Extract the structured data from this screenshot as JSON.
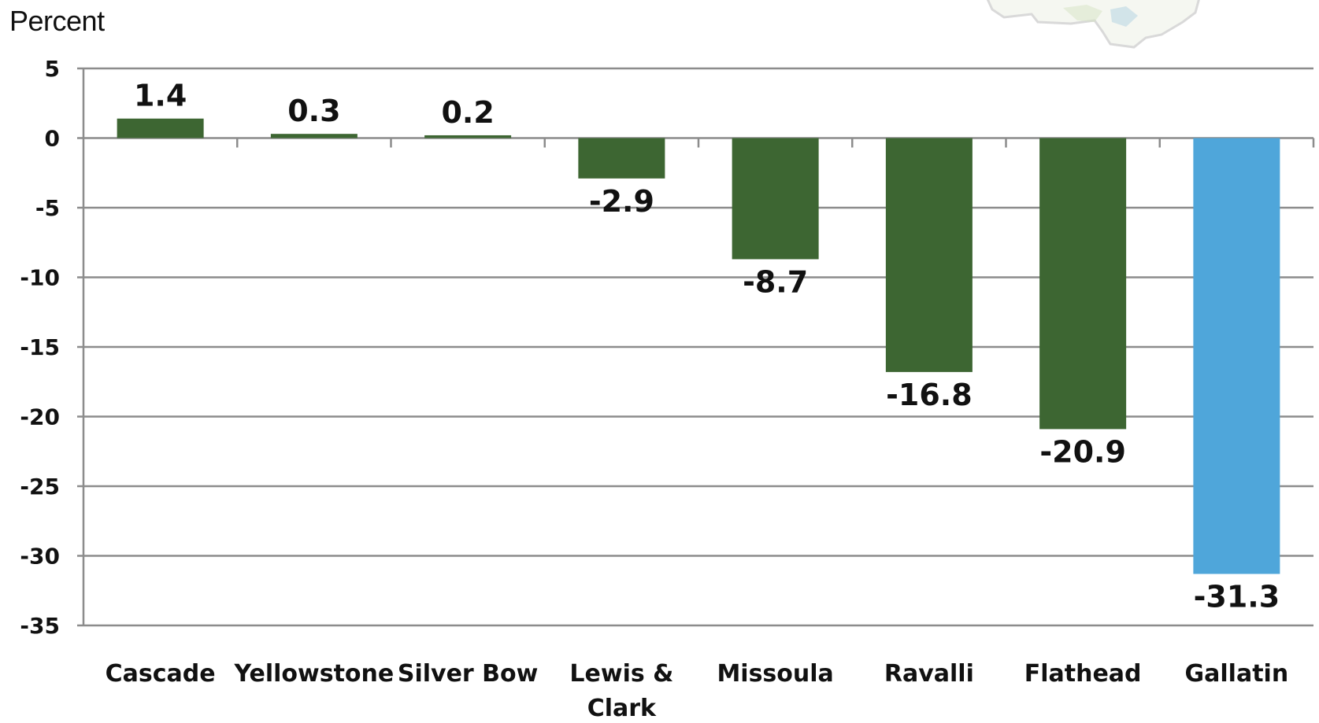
{
  "chart_data": {
    "type": "bar",
    "ylabel": "Percent",
    "categories": [
      "Cascade",
      "Yellowstone",
      "Silver Bow",
      "Lewis & Clark",
      "Missoula",
      "Ravalli",
      "Flathead",
      "Gallatin"
    ],
    "category_lines": [
      [
        "Cascade"
      ],
      [
        "Yellowstone"
      ],
      [
        "Silver Bow"
      ],
      [
        "Lewis &",
        "Clark"
      ],
      [
        "Missoula"
      ],
      [
        "Ravalli"
      ],
      [
        "Flathead"
      ],
      [
        "Gallatin"
      ]
    ],
    "values": [
      1.4,
      0.3,
      0.2,
      -2.9,
      -8.7,
      -16.8,
      -20.9,
      -31.3
    ],
    "data_labels": [
      "1.4",
      "0.3",
      "0.2",
      "-2.9",
      "-8.7",
      "-16.8",
      "-20.9",
      "-31.3"
    ],
    "yticks": [
      5,
      0,
      -5,
      -10,
      -15,
      -20,
      -25,
      -30,
      -35
    ],
    "ylim": [
      -35,
      5
    ],
    "grid": true,
    "bar_color": "#3d6632",
    "highlight_color": "#4fa6da",
    "highlight_category": "Gallatin"
  }
}
